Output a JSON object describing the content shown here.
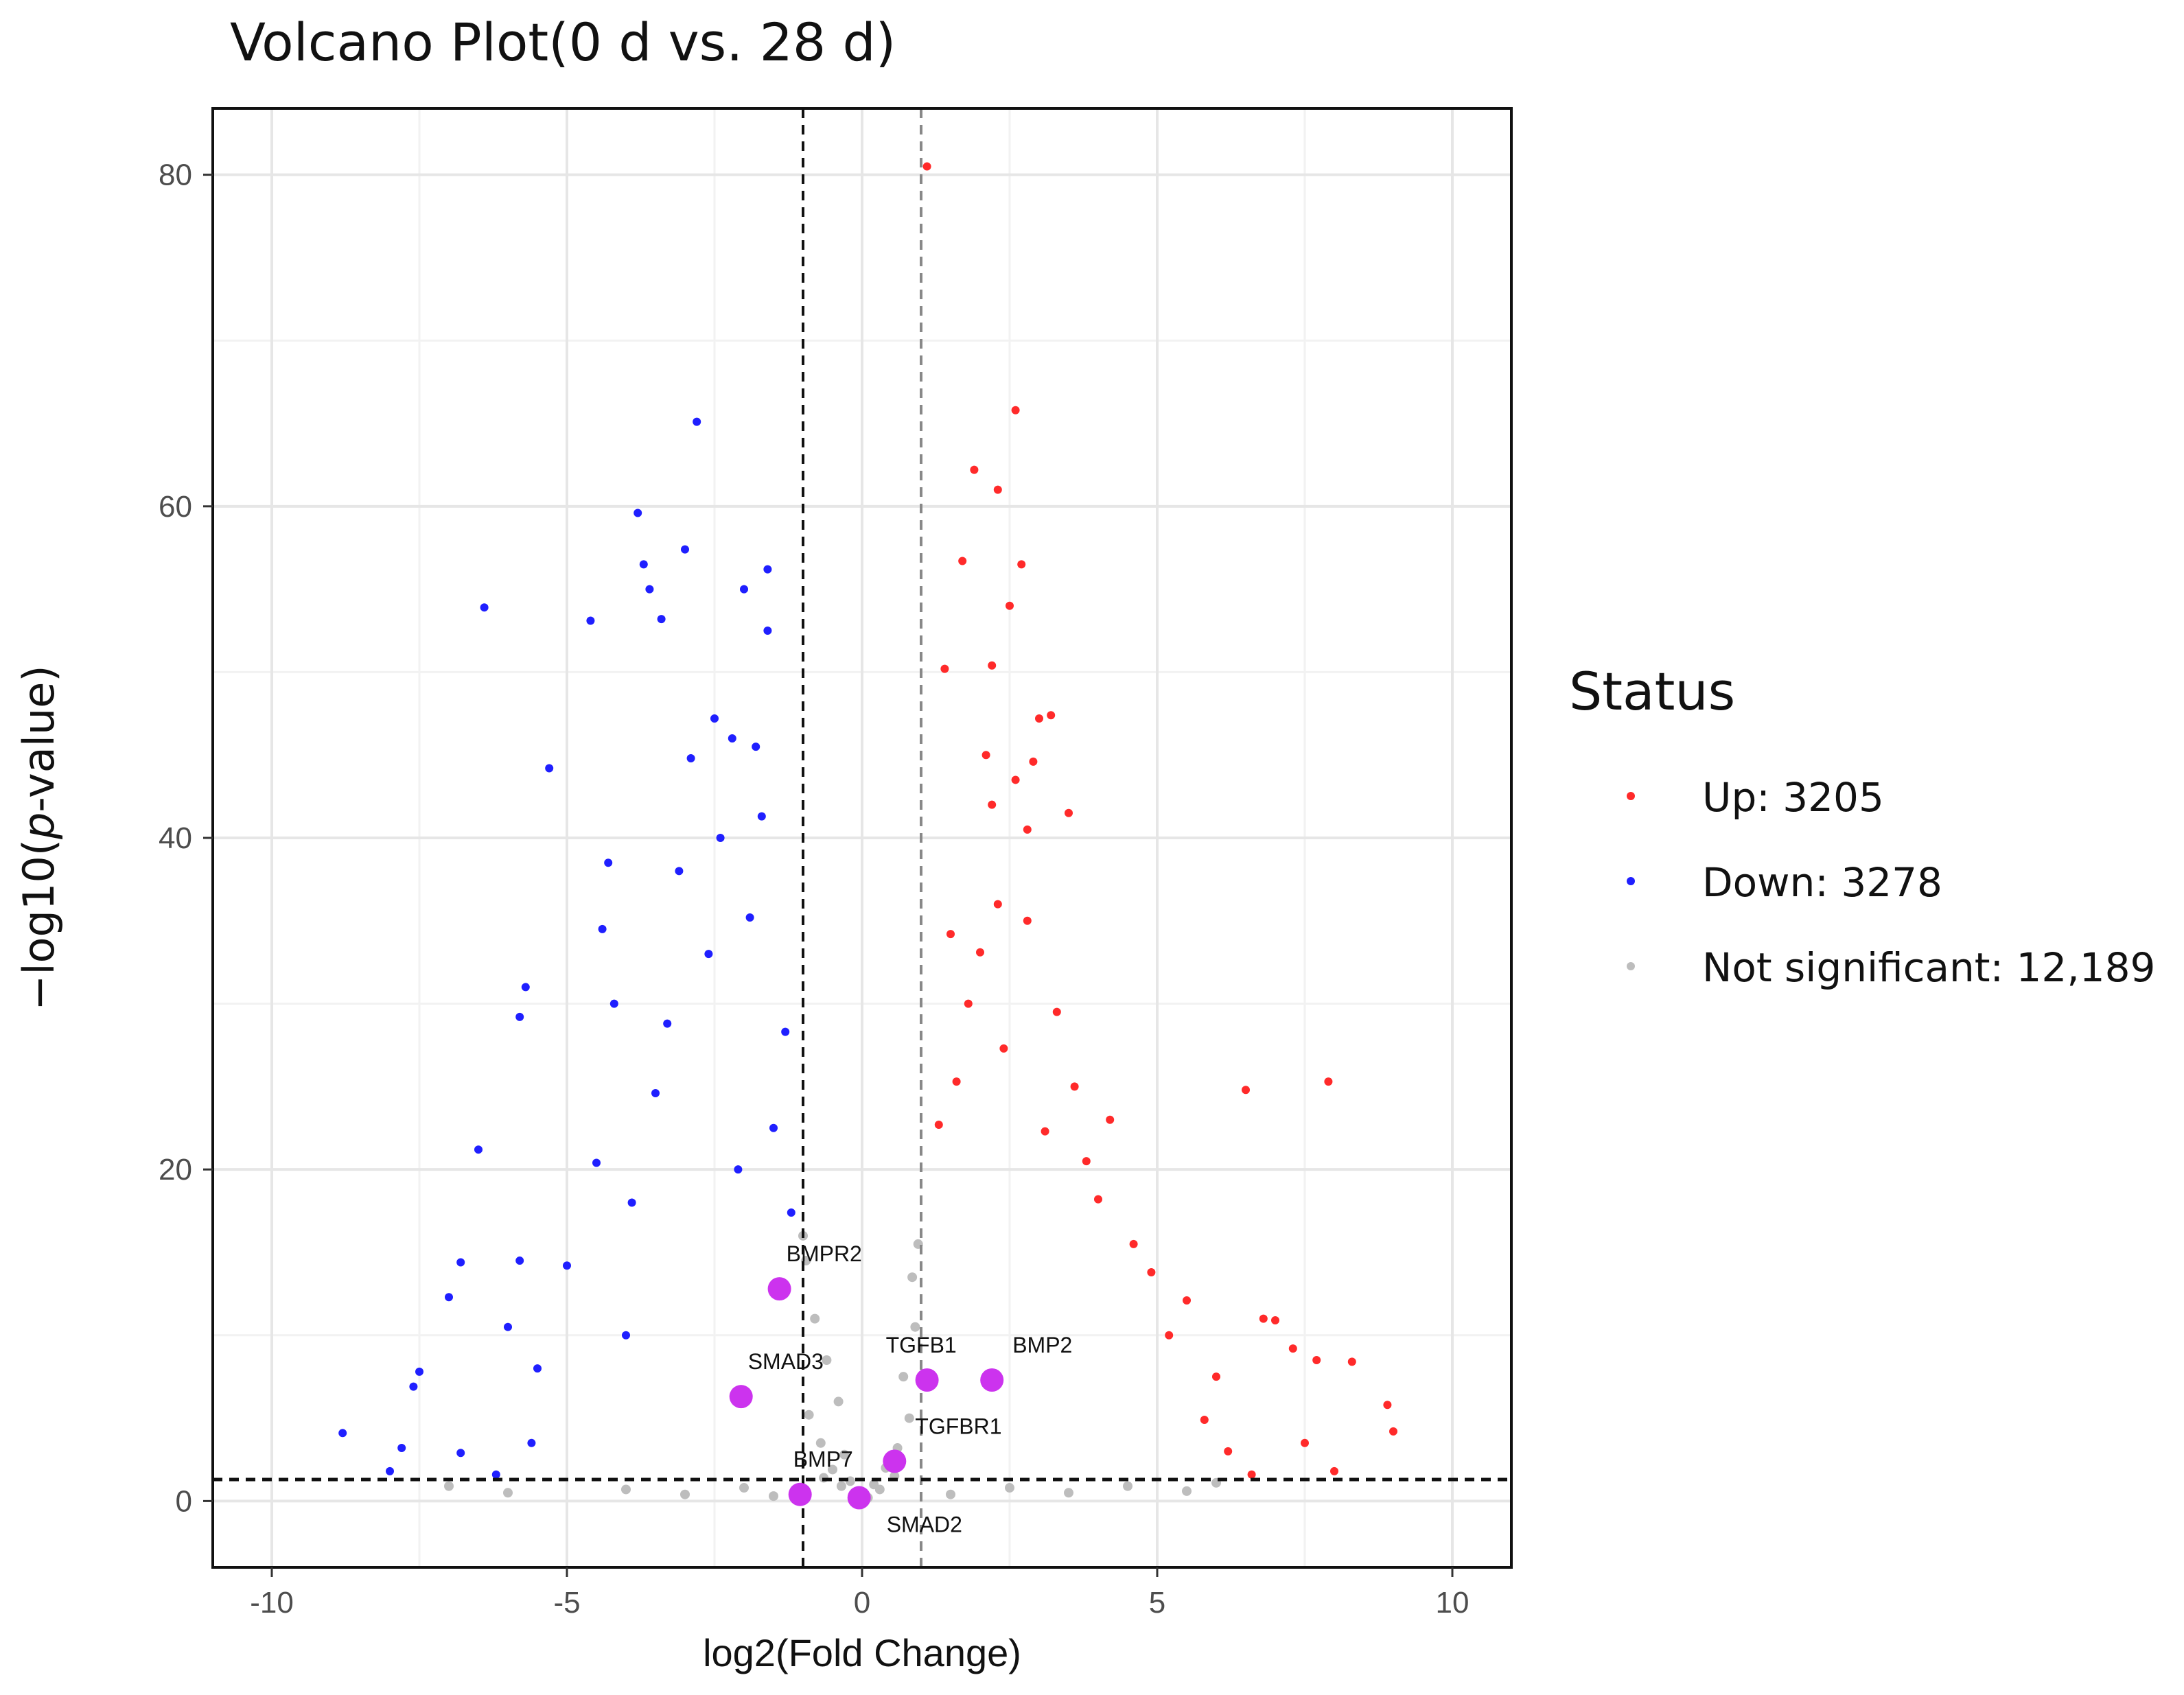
{
  "chart_data": {
    "type": "scatter",
    "title": "Volcano Plot(0 d vs. 28 d)",
    "xlabel": "log2(Fold Change)",
    "ylabel_prefix": "−log10(",
    "ylabel_italic": "p",
    "ylabel_suffix": "-value)",
    "xlim": [
      -11,
      11
    ],
    "ylim": [
      -4,
      84
    ],
    "x_ticks": [
      -10,
      -5,
      0,
      5,
      10
    ],
    "x_tick_labels": [
      "-10",
      "-5",
      "0",
      "5",
      "10"
    ],
    "y_ticks": [
      0,
      20,
      40,
      60,
      80
    ],
    "y_tick_labels": [
      "0",
      "20",
      "40",
      "60",
      "80"
    ],
    "grid": true,
    "thresholds": {
      "log2fc_low": -1,
      "log2fc_high": 1,
      "neg_log10_p": 1.3
    },
    "legend": {
      "title": "Status",
      "position": "right",
      "entries": [
        {
          "name": "Up: 3205",
          "color": "#ff2a2a",
          "count": 3205
        },
        {
          "name": "Down: 3278",
          "color": "#1f1fff",
          "count": 3278
        },
        {
          "name": "Not significant: 12,189",
          "color": "#bdbdbd",
          "count": 12189
        }
      ]
    },
    "series": [
      {
        "name": "Up",
        "color": "#ff2a2a",
        "points": [
          [
            1.1,
            80.5
          ],
          [
            2.6,
            65.8
          ],
          [
            1.9,
            62.2
          ],
          [
            2.3,
            61.0
          ],
          [
            1.7,
            56.7
          ],
          [
            2.7,
            56.5
          ],
          [
            2.5,
            54.0
          ],
          [
            1.4,
            50.2
          ],
          [
            2.2,
            50.4
          ],
          [
            3.2,
            47.4
          ],
          [
            3.0,
            47.2
          ],
          [
            2.1,
            45.0
          ],
          [
            2.9,
            44.6
          ],
          [
            2.6,
            43.5
          ],
          [
            2.2,
            42.0
          ],
          [
            3.5,
            41.5
          ],
          [
            2.8,
            40.5
          ],
          [
            6.5,
            24.8
          ],
          [
            7.9,
            25.3
          ],
          [
            3.3,
            29.5
          ],
          [
            3.6,
            25.0
          ],
          [
            4.2,
            23.0
          ],
          [
            8.3,
            8.4
          ],
          [
            7.7,
            8.5
          ],
          [
            8.9,
            5.8
          ],
          [
            9.0,
            4.2
          ],
          [
            7.0,
            10.9
          ],
          [
            6.8,
            11.0
          ],
          [
            7.3,
            9.2
          ],
          [
            7.5,
            3.5
          ],
          [
            6.2,
            3.0
          ],
          [
            5.8,
            4.9
          ],
          [
            5.5,
            12.1
          ],
          [
            6.0,
            7.5
          ],
          [
            4.9,
            13.8
          ],
          [
            5.2,
            10.0
          ],
          [
            4.6,
            15.5
          ],
          [
            4.0,
            18.2
          ],
          [
            3.8,
            20.5
          ],
          [
            3.1,
            22.3
          ],
          [
            2.4,
            27.3
          ],
          [
            1.8,
            30.0
          ],
          [
            1.6,
            25.3
          ],
          [
            2.0,
            33.1
          ],
          [
            2.3,
            36.0
          ],
          [
            1.5,
            34.2
          ],
          [
            1.3,
            22.7
          ],
          [
            2.8,
            35.0
          ],
          [
            8.0,
            1.8
          ],
          [
            6.6,
            1.6
          ]
        ]
      },
      {
        "name": "Down",
        "color": "#1f1fff",
        "points": [
          [
            -2.8,
            65.1
          ],
          [
            -3.8,
            59.6
          ],
          [
            -3.0,
            57.4
          ],
          [
            -3.7,
            56.5
          ],
          [
            -1.6,
            56.2
          ],
          [
            -2.0,
            55.0
          ],
          [
            -3.6,
            55.0
          ],
          [
            -6.4,
            53.9
          ],
          [
            -4.6,
            53.1
          ],
          [
            -3.4,
            53.2
          ],
          [
            -1.6,
            52.5
          ],
          [
            -5.3,
            44.2
          ],
          [
            -2.5,
            47.2
          ],
          [
            -2.2,
            46.0
          ],
          [
            -1.8,
            45.5
          ],
          [
            -2.9,
            44.8
          ],
          [
            -1.7,
            41.3
          ],
          [
            -4.3,
            38.5
          ],
          [
            -4.4,
            34.5
          ],
          [
            -3.1,
            38.0
          ],
          [
            -2.4,
            40.0
          ],
          [
            -5.7,
            31.0
          ],
          [
            -5.8,
            29.2
          ],
          [
            -4.2,
            30.0
          ],
          [
            -6.5,
            21.2
          ],
          [
            -6.8,
            14.4
          ],
          [
            -5.8,
            14.5
          ],
          [
            -5.0,
            14.2
          ],
          [
            -6.0,
            10.5
          ],
          [
            -7.0,
            12.3
          ],
          [
            -7.5,
            7.8
          ],
          [
            -7.6,
            6.9
          ],
          [
            -8.8,
            4.1
          ],
          [
            -7.8,
            3.2
          ],
          [
            -6.8,
            2.9
          ],
          [
            -5.6,
            3.5
          ],
          [
            -5.5,
            8.0
          ],
          [
            -4.0,
            10.0
          ],
          [
            -4.5,
            20.4
          ],
          [
            -3.9,
            18.0
          ],
          [
            -3.3,
            28.8
          ],
          [
            -2.6,
            33.0
          ],
          [
            -1.3,
            28.3
          ],
          [
            -1.9,
            35.2
          ],
          [
            -3.5,
            24.6
          ],
          [
            -2.1,
            20.0
          ],
          [
            -1.5,
            22.5
          ],
          [
            -1.2,
            17.4
          ],
          [
            -8.0,
            1.8
          ],
          [
            -6.2,
            1.6
          ]
        ]
      },
      {
        "name": "Not significant",
        "color": "#bdbdbd",
        "points": [
          [
            -0.8,
            11.0
          ],
          [
            -0.6,
            8.5
          ],
          [
            -0.4,
            6.0
          ],
          [
            -0.9,
            5.2
          ],
          [
            -0.7,
            3.5
          ],
          [
            -0.3,
            2.8
          ],
          [
            -0.5,
            1.9
          ],
          [
            -0.2,
            1.2
          ],
          [
            0.2,
            1.0
          ],
          [
            0.4,
            2.0
          ],
          [
            0.6,
            3.2
          ],
          [
            0.8,
            5.0
          ],
          [
            0.7,
            7.5
          ],
          [
            0.9,
            10.5
          ],
          [
            0.85,
            13.5
          ],
          [
            0.95,
            15.5
          ],
          [
            -0.95,
            14.5
          ],
          [
            -1.0,
            16.0
          ],
          [
            -6.0,
            0.5
          ],
          [
            -4.0,
            0.7
          ],
          [
            -3.0,
            0.4
          ],
          [
            -2.0,
            0.8
          ],
          [
            -1.5,
            0.3
          ],
          [
            1.5,
            0.4
          ],
          [
            2.5,
            0.8
          ],
          [
            3.5,
            0.5
          ],
          [
            4.5,
            0.9
          ],
          [
            5.5,
            0.6
          ],
          [
            6.0,
            1.1
          ],
          [
            -7.0,
            0.9
          ],
          [
            -0.1,
            0.5
          ],
          [
            0.1,
            0.2
          ],
          [
            0.3,
            0.7
          ],
          [
            -0.35,
            0.9
          ],
          [
            0.55,
            1.5
          ],
          [
            -0.65,
            1.4
          ]
        ]
      }
    ],
    "highlighted_genes": [
      {
        "label": "BMPR2",
        "x": -1.4,
        "y": 12.8,
        "color": "#cc33ee"
      },
      {
        "label": "SMAD3",
        "x": -2.05,
        "y": 6.3,
        "color": "#cc33ee"
      },
      {
        "label": "TGFB1",
        "x": 1.1,
        "y": 7.3,
        "color": "#cc33ee"
      },
      {
        "label": "BMP2",
        "x": 2.2,
        "y": 7.3,
        "color": "#cc33ee"
      },
      {
        "label": "TGFBR1",
        "x": 0.55,
        "y": 2.4,
        "color": "#cc33ee"
      },
      {
        "label": "BMP7",
        "x": -1.05,
        "y": 0.4,
        "color": "#cc33ee"
      },
      {
        "label": "SMAD2",
        "x": -0.05,
        "y": 0.2,
        "color": "#cc33ee"
      }
    ]
  }
}
